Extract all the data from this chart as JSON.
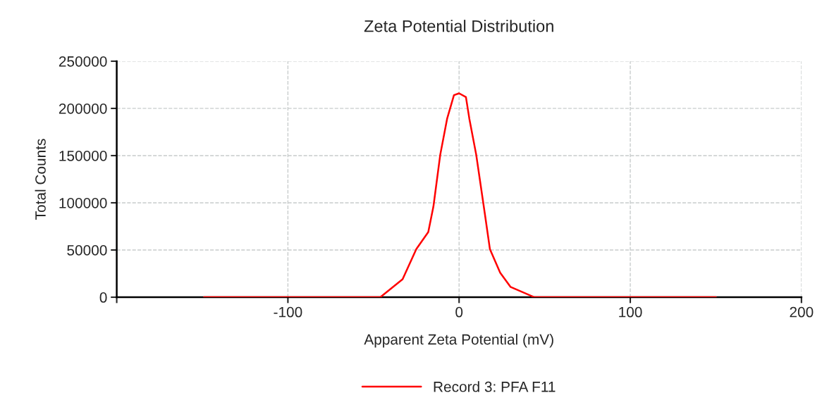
{
  "chart_data": {
    "type": "line",
    "title": "Zeta Potential Distribution",
    "xlabel": "Apparent Zeta Potential (mV)",
    "ylabel": "Total Counts",
    "series": [
      {
        "name": "Record 3: PFA F11",
        "color": "#ff0000",
        "x": [
          -149,
          -46,
          -33,
          -25,
          -18,
          -15,
          -11,
          -7,
          -3,
          0,
          4,
          6,
          10,
          15,
          18,
          24,
          30,
          44,
          150
        ],
        "values": [
          0,
          0,
          19000,
          51000,
          69000,
          96000,
          151000,
          189000,
          214000,
          216000,
          212000,
          189000,
          151000,
          89000,
          51000,
          26000,
          11000,
          0,
          0
        ]
      }
    ],
    "xlim": [
      -200,
      200
    ],
    "xticks": [
      {
        "value": -200,
        "label": null
      },
      -100,
      0,
      100,
      200
    ],
    "ylim": [
      0,
      250000
    ],
    "yticks": [
      0,
      50000,
      100000,
      150000,
      200000,
      250000
    ],
    "grid": true,
    "legend": "bottom",
    "marker": "none",
    "line_style": "solid"
  }
}
